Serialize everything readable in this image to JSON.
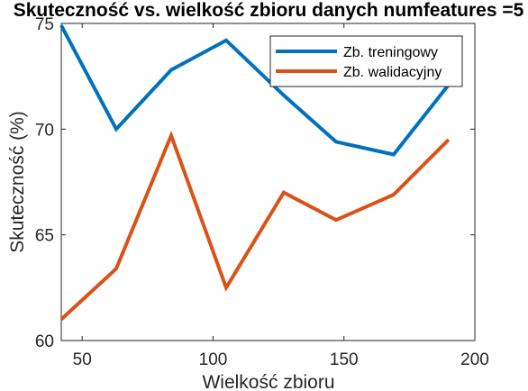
{
  "chart_data": {
    "type": "line",
    "title": "Skuteczność vs. wielkość zbioru danych numfeatures =5",
    "xlabel": "Wielkość zbioru",
    "ylabel": "Skuteczność (%)",
    "xlim": [
      42,
      200
    ],
    "ylim": [
      60,
      75
    ],
    "xticks": [
      50,
      100,
      150,
      200
    ],
    "yticks": [
      60,
      65,
      70,
      75
    ],
    "grid": false,
    "legend_position": "top-right",
    "x": [
      42,
      63,
      84,
      105,
      127,
      147,
      169,
      190
    ],
    "series": [
      {
        "name": "Zb. treningowy",
        "color": "#0072BD",
        "values": [
          74.9,
          70.0,
          72.8,
          74.2,
          71.6,
          69.4,
          68.8,
          72.1
        ]
      },
      {
        "name": "Zb. walidacyjny",
        "color": "#D95319",
        "values": [
          61.0,
          63.4,
          69.7,
          62.5,
          67.0,
          65.7,
          66.9,
          69.5
        ]
      }
    ]
  }
}
